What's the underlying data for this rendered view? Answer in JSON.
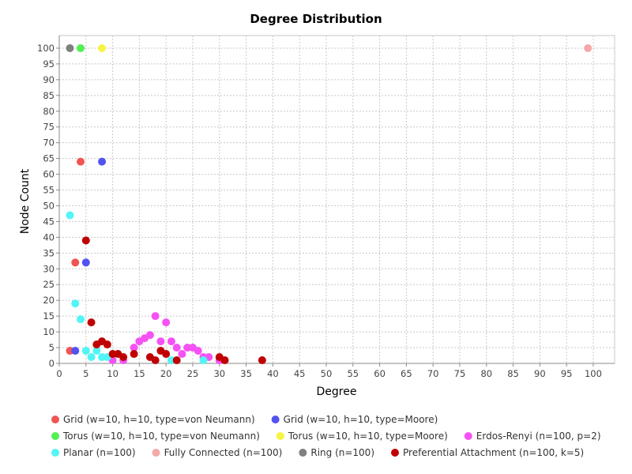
{
  "chart_data": {
    "type": "scatter",
    "title": "Degree Distribution",
    "xlabel": "Degree",
    "ylabel": "Node Count",
    "xlim": [
      0,
      104
    ],
    "ylim": [
      0,
      104
    ],
    "grid": true,
    "legend_position": "bottom",
    "x_ticks": [
      0,
      5,
      10,
      15,
      20,
      25,
      30,
      35,
      40,
      45,
      50,
      55,
      60,
      65,
      70,
      75,
      80,
      85,
      90,
      95,
      100
    ],
    "y_ticks": [
      0,
      5,
      10,
      15,
      20,
      25,
      30,
      35,
      40,
      45,
      50,
      55,
      60,
      65,
      70,
      75,
      80,
      85,
      90,
      95,
      100
    ],
    "series": [
      {
        "name": "Grid (w=10, h=10, type=von Neumann)",
        "color": "#f05454",
        "points": [
          [
            2,
            4
          ],
          [
            3,
            32
          ],
          [
            4,
            64
          ]
        ]
      },
      {
        "name": "Grid (w=10, h=10, type=Moore)",
        "color": "#5252f0",
        "points": [
          [
            3,
            4
          ],
          [
            5,
            32
          ],
          [
            8,
            64
          ]
        ]
      },
      {
        "name": "Torus (w=10, h=10, type=von Neumann)",
        "color": "#52f052",
        "points": [
          [
            4,
            100
          ]
        ]
      },
      {
        "name": "Torus (w=10, h=10, type=Moore)",
        "color": "#f5f542",
        "points": [
          [
            8,
            100
          ]
        ]
      },
      {
        "name": "Erdos-Renyi (n=100, p=2)",
        "color": "#f552f5",
        "points": [
          [
            10,
            1
          ],
          [
            12,
            1
          ],
          [
            14,
            5
          ],
          [
            15,
            7
          ],
          [
            16,
            8
          ],
          [
            17,
            9
          ],
          [
            18,
            15
          ],
          [
            19,
            7
          ],
          [
            20,
            13
          ],
          [
            21,
            7
          ],
          [
            22,
            5
          ],
          [
            23,
            3
          ],
          [
            24,
            5
          ],
          [
            25,
            5
          ],
          [
            26,
            4
          ],
          [
            27,
            2
          ],
          [
            28,
            2
          ],
          [
            30,
            1
          ]
        ]
      },
      {
        "name": "Planar (n=100)",
        "color": "#52f5f5",
        "points": [
          [
            2,
            47
          ],
          [
            3,
            19
          ],
          [
            4,
            14
          ],
          [
            5,
            4
          ],
          [
            6,
            2
          ],
          [
            7,
            4
          ],
          [
            8,
            2
          ],
          [
            9,
            2
          ],
          [
            11,
            3
          ],
          [
            21,
            1
          ],
          [
            27,
            1
          ]
        ]
      },
      {
        "name": "Fully Connected (n=100)",
        "color": "#f5a8a8",
        "points": [
          [
            99,
            100
          ]
        ]
      },
      {
        "name": "Ring (n=100)",
        "color": "#808080",
        "points": [
          [
            2,
            100
          ]
        ]
      },
      {
        "name": "Preferential Attachment (n=100, k=5)",
        "color": "#c00000",
        "points": [
          [
            5,
            39
          ],
          [
            6,
            13
          ],
          [
            7,
            6
          ],
          [
            8,
            7
          ],
          [
            9,
            6
          ],
          [
            10,
            3
          ],
          [
            11,
            3
          ],
          [
            12,
            2
          ],
          [
            14,
            3
          ],
          [
            17,
            2
          ],
          [
            18,
            1
          ],
          [
            19,
            4
          ],
          [
            20,
            3
          ],
          [
            22,
            1
          ],
          [
            30,
            2
          ],
          [
            31,
            1
          ],
          [
            38,
            1
          ]
        ]
      }
    ]
  }
}
